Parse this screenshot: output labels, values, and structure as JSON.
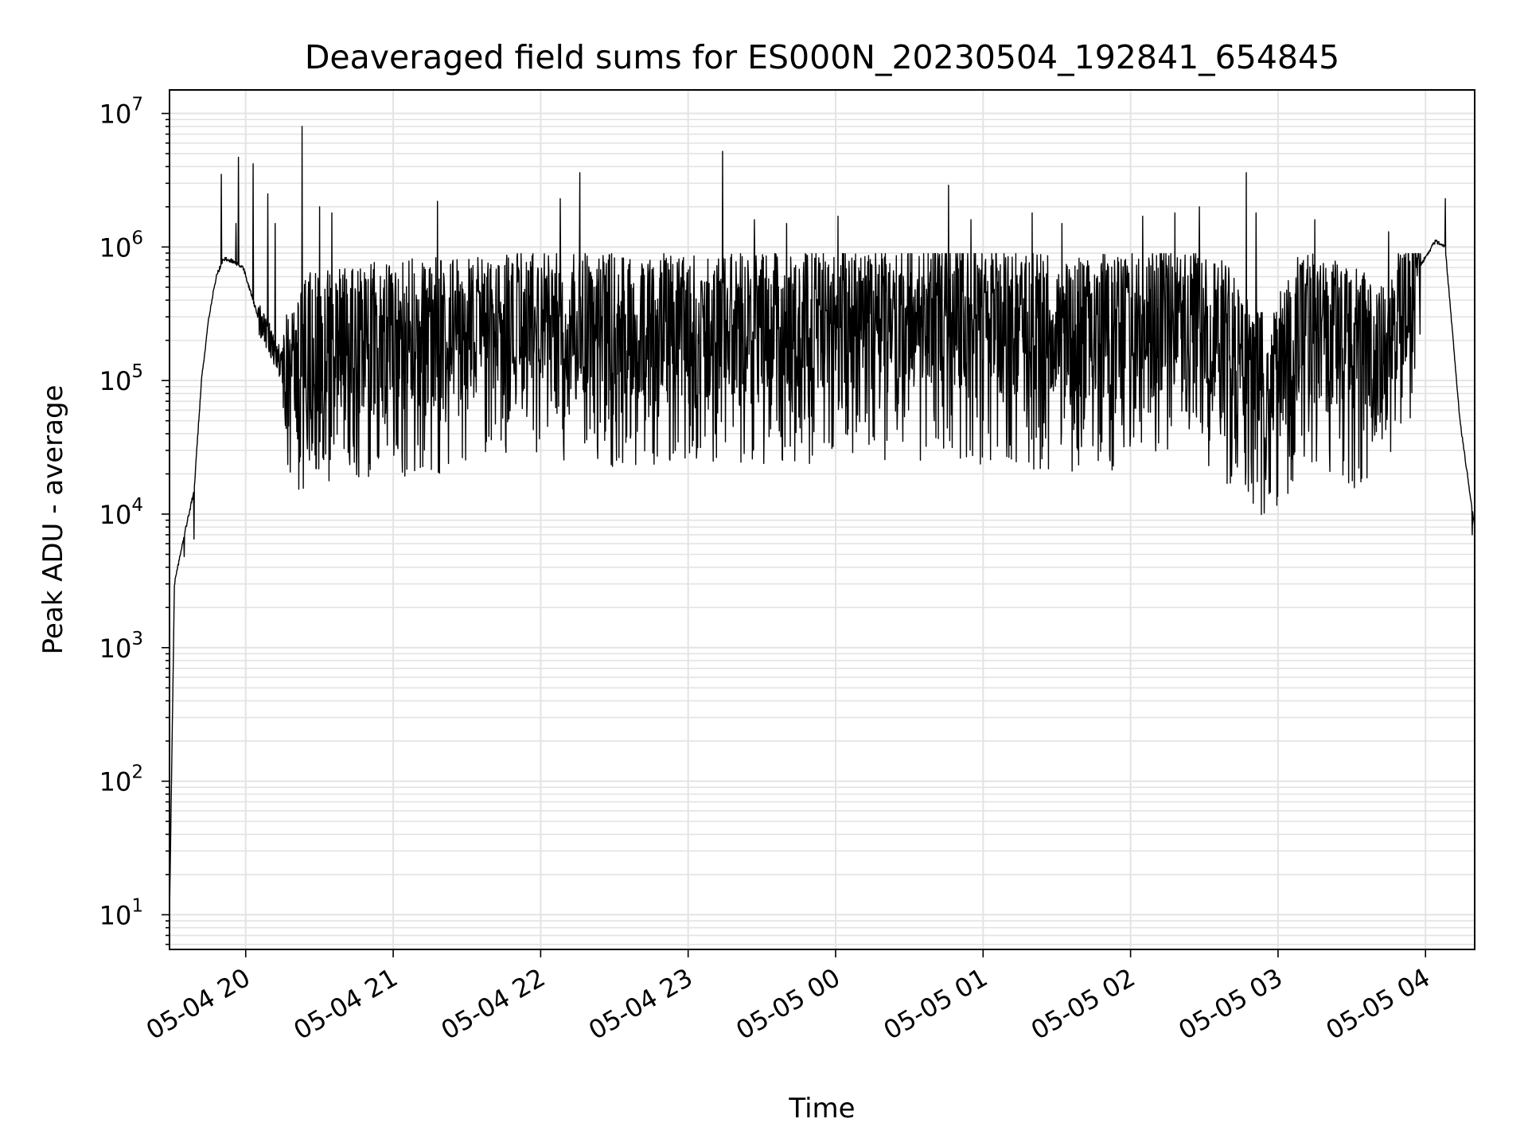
{
  "chart_data": {
    "type": "line",
    "title": "Deaveraged field sums for ES000N_20230504_192841_654845",
    "xlabel": "Time",
    "ylabel": "Peak ADU - average",
    "yscale": "log",
    "ylim": [
      5.5,
      15000000
    ],
    "xlim": [
      "2023-05-04 19:29",
      "2023-05-05 04:20"
    ],
    "grid": true,
    "legend": "none",
    "x_tick_labels": [
      "05-04 20",
      "05-04 21",
      "05-04 22",
      "05-04 23",
      "05-05 00",
      "05-05 01",
      "05-05 02",
      "05-05 03",
      "05-05 04"
    ],
    "y_tick_labels": [
      {
        "base": "10",
        "exp": "1"
      },
      {
        "base": "10",
        "exp": "2"
      },
      {
        "base": "10",
        "exp": "3"
      },
      {
        "base": "10",
        "exp": "4"
      },
      {
        "base": "10",
        "exp": "5"
      },
      {
        "base": "10",
        "exp": "6"
      },
      {
        "base": "10",
        "exp": "7"
      }
    ],
    "series": [
      {
        "color": "#000000",
        "envelope": [
          {
            "x": "2023-05-04 19:29",
            "y": 10
          },
          {
            "x": "2023-05-04 19:31",
            "y": 3000
          },
          {
            "x": "2023-05-04 19:35",
            "y": 7000
          },
          {
            "x": "2023-05-04 19:39",
            "y": 15000
          },
          {
            "x": "2023-05-04 19:42",
            "y": 100000
          },
          {
            "x": "2023-05-04 19:45",
            "y": 300000
          },
          {
            "x": "2023-05-04 19:48",
            "y": 600000
          },
          {
            "x": "2023-05-04 19:51",
            "y": 820000
          },
          {
            "x": "2023-05-04 19:55",
            "y": 780000
          },
          {
            "x": "2023-05-04 19:59",
            "y": 700000
          },
          {
            "x": "2023-05-04 20:05",
            "y": 300000
          },
          {
            "x": "2023-05-04 20:10",
            "y": 200000
          },
          {
            "x": "2023-05-04 20:18",
            "y": 90000
          },
          {
            "x": "2023-05-04 20:25",
            "y": 200000
          },
          {
            "x": "2023-05-04 20:40",
            "y": 220000
          },
          {
            "x": "2023-05-04 21:30",
            "y": 250000
          },
          {
            "x": "2023-05-04 22:00",
            "y": 300000
          },
          {
            "x": "2023-05-04 22:30",
            "y": 280000
          },
          {
            "x": "2023-05-04 23:00",
            "y": 260000
          },
          {
            "x": "2023-05-05 00:00",
            "y": 300000
          },
          {
            "x": "2023-05-05 00:45",
            "y": 320000
          },
          {
            "x": "2023-05-05 01:30",
            "y": 250000
          },
          {
            "x": "2023-05-05 02:30",
            "y": 300000
          },
          {
            "x": "2023-05-05 02:58",
            "y": 100000
          },
          {
            "x": "2023-05-05 03:10",
            "y": 300000
          },
          {
            "x": "2023-05-05 03:30",
            "y": 200000
          },
          {
            "x": "2023-05-05 03:45",
            "y": 150000
          },
          {
            "x": "2023-05-05 03:55",
            "y": 600000
          },
          {
            "x": "2023-05-05 04:04",
            "y": 1100000
          },
          {
            "x": "2023-05-05 04:08",
            "y": 1000000
          },
          {
            "x": "2023-05-05 04:14",
            "y": 50000
          },
          {
            "x": "2023-05-05 04:20",
            "y": 8000
          }
        ],
        "spikes": [
          {
            "x": "2023-05-04 19:50",
            "y": 3500000
          },
          {
            "x": "2023-05-04 19:56",
            "y": 1500000
          },
          {
            "x": "2023-05-04 19:57",
            "y": 4700000
          },
          {
            "x": "2023-05-04 20:03",
            "y": 4200000
          },
          {
            "x": "2023-05-04 20:09",
            "y": 2500000
          },
          {
            "x": "2023-05-04 20:12",
            "y": 1500000
          },
          {
            "x": "2023-05-04 20:23",
            "y": 8000000
          },
          {
            "x": "2023-05-04 20:30",
            "y": 2000000
          },
          {
            "x": "2023-05-04 20:35",
            "y": 1800000
          },
          {
            "x": "2023-05-04 21:18",
            "y": 2200000
          },
          {
            "x": "2023-05-04 22:08",
            "y": 2300000
          },
          {
            "x": "2023-05-04 22:16",
            "y": 3600000
          },
          {
            "x": "2023-05-04 23:14",
            "y": 5200000
          },
          {
            "x": "2023-05-04 23:27",
            "y": 1600000
          },
          {
            "x": "2023-05-04 23:40",
            "y": 1500000
          },
          {
            "x": "2023-05-05 00:01",
            "y": 1700000
          },
          {
            "x": "2023-05-05 00:46",
            "y": 2900000
          },
          {
            "x": "2023-05-05 00:55",
            "y": 1600000
          },
          {
            "x": "2023-05-05 01:20",
            "y": 1800000
          },
          {
            "x": "2023-05-05 01:32",
            "y": 1500000
          },
          {
            "x": "2023-05-05 02:05",
            "y": 1700000
          },
          {
            "x": "2023-05-05 02:18",
            "y": 1800000
          },
          {
            "x": "2023-05-05 02:28",
            "y": 2000000
          },
          {
            "x": "2023-05-05 02:47",
            "y": 3600000
          },
          {
            "x": "2023-05-05 02:51",
            "y": 1800000
          },
          {
            "x": "2023-05-05 03:15",
            "y": 1600000
          },
          {
            "x": "2023-05-05 03:25",
            "y": 1500000
          },
          {
            "x": "2023-05-05 03:45",
            "y": 1300000
          },
          {
            "x": "2023-05-05 04:08",
            "y": 2300000
          }
        ],
        "dips": [
          {
            "x": "2023-05-04 19:35",
            "y": 4800
          },
          {
            "x": "2023-05-04 19:39",
            "y": 6500
          },
          {
            "x": "2023-05-04 20:17",
            "y": 60000
          },
          {
            "x": "2023-05-04 20:25",
            "y": 38000
          },
          {
            "x": "2023-05-04 20:45",
            "y": 32000
          },
          {
            "x": "2023-05-04 21:10",
            "y": 33000
          },
          {
            "x": "2023-05-04 21:40",
            "y": 36000
          },
          {
            "x": "2023-05-04 22:35",
            "y": 38000
          },
          {
            "x": "2023-05-04 23:33",
            "y": 38000
          },
          {
            "x": "2023-05-04 23:59",
            "y": 32000
          },
          {
            "x": "2023-05-05 00:25",
            "y": 43000
          },
          {
            "x": "2023-05-05 01:40",
            "y": 32000
          },
          {
            "x": "2023-05-05 02:00",
            "y": 38000
          },
          {
            "x": "2023-05-05 03:05",
            "y": 55000
          },
          {
            "x": "2023-05-05 03:25",
            "y": 37000
          },
          {
            "x": "2023-05-05 03:50",
            "y": 48000
          },
          {
            "x": "2023-05-05 04:19",
            "y": 7000
          }
        ]
      }
    ]
  }
}
